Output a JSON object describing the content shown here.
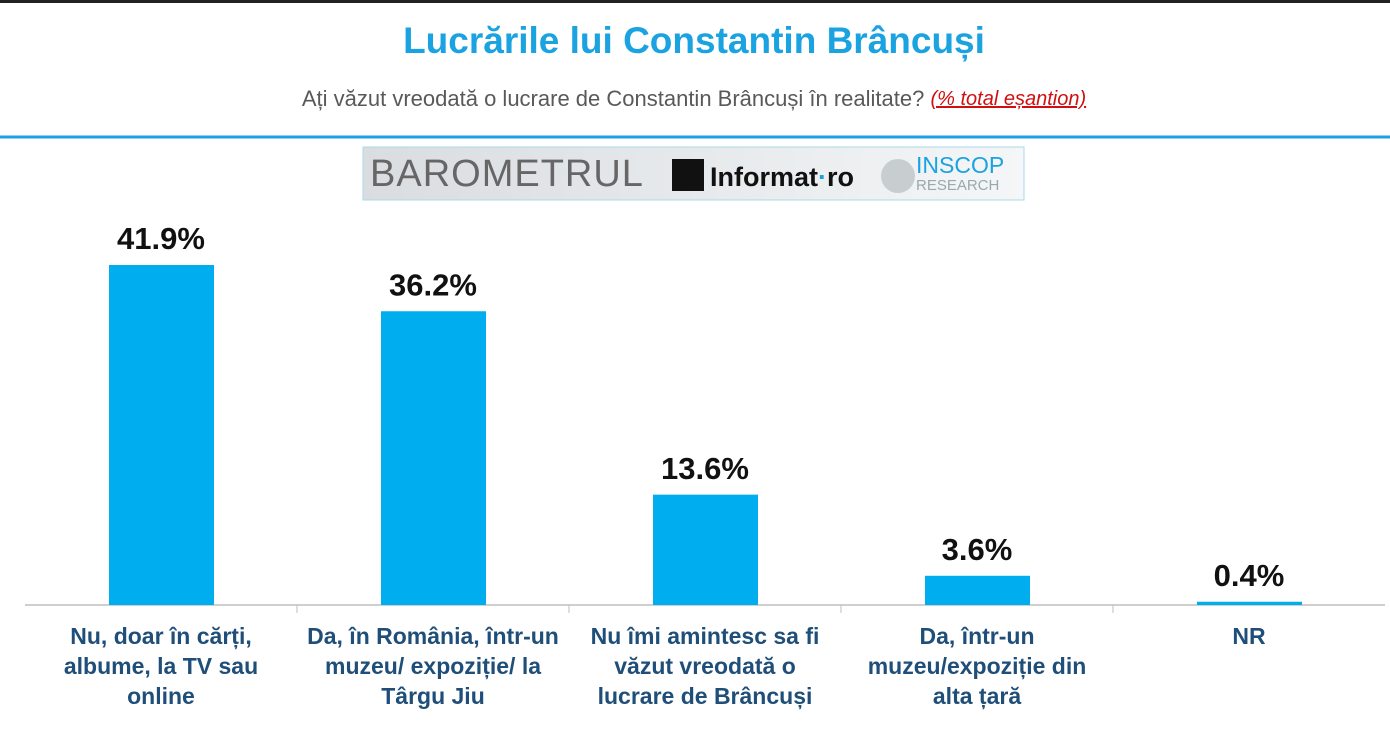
{
  "chart_data": {
    "type": "bar",
    "title": "Lucrările lui Constantin Brâncuși",
    "subtitle": "Ați văzut vreodată o lucrare de Constantin Brâncuși în realitate?",
    "note": "(% total eșantion)",
    "annotations": [
      "BAROMETRUL",
      "Informat",
      "ro",
      "INSCOP",
      "RESEARCH"
    ],
    "categories": [
      "Nu, doar în cărți, albume, la TV sau online",
      "Da, în România, într-un muzeu/ expoziție/ la Târgu Jiu",
      "Nu îmi amintesc sa fi văzut vreodată o lucrare de Brâncuși",
      "Da, într-un muzeu/expoziție din alta țară",
      "NR"
    ],
    "values": [
      41.9,
      36.2,
      13.6,
      3.6,
      0.4
    ],
    "value_labels": [
      "41.9%",
      "36.2%",
      "13.6%",
      "3.6%",
      "0.4%"
    ],
    "color": "#00adef"
  }
}
